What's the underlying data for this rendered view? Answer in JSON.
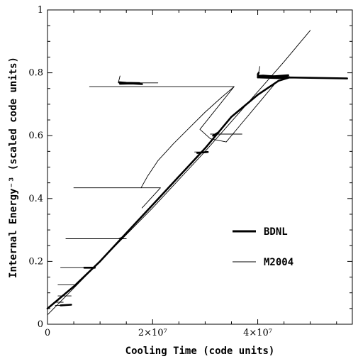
{
  "chart_data": {
    "type": "line",
    "title": "",
    "xlabel": "Cooling Time (code units)",
    "ylabel": "Internal Energy⁻³ (scaled code units)",
    "xlim": [
      0,
      58000000
    ],
    "ylim": [
      0,
      1.0
    ],
    "x_ticks": [
      {
        "value": 0,
        "label": "0"
      },
      {
        "value": 20000000,
        "label": "2×10⁷"
      },
      {
        "value": 40000000,
        "label": "4×10⁷"
      }
    ],
    "y_ticks": [
      {
        "value": 0,
        "label": "0"
      },
      {
        "value": 0.2,
        "label": "0.2"
      },
      {
        "value": 0.4,
        "label": "0.4"
      },
      {
        "value": 0.6,
        "label": "0.6"
      },
      {
        "value": 0.8,
        "label": "0.8"
      },
      {
        "value": 1.0,
        "label": "1"
      }
    ],
    "legend_position": "center-right",
    "series": [
      {
        "name": "BDNL",
        "style": "thick",
        "color": "#000000",
        "segments": [
          [
            [
              0,
              0.05
            ],
            [
              5000000,
              0.12
            ],
            [
              10000000,
              0.2
            ],
            [
              15000000,
              0.29
            ],
            [
              20000000,
              0.38
            ],
            [
              25000000,
              0.47
            ],
            [
              30000000,
              0.56
            ],
            [
              35000000,
              0.66
            ],
            [
              40000000,
              0.73
            ],
            [
              44000000,
              0.775
            ],
            [
              46000000,
              0.785
            ],
            [
              57000000,
              0.782
            ]
          ],
          [
            [
              40000000,
              0.79
            ],
            [
              41000000,
              0.791
            ],
            [
              43000000,
              0.789
            ],
            [
              45000000,
              0.787
            ],
            [
              46000000,
              0.786
            ]
          ],
          [
            [
              40200000,
              0.8
            ],
            [
              40000000,
              0.795
            ],
            [
              40400000,
              0.785
            ],
            [
              44000000,
              0.783
            ],
            [
              45000000,
              0.784
            ]
          ],
          [
            [
              40000000,
              0.785
            ],
            [
              45800000,
              0.792
            ]
          ],
          [
            [
              13800000,
              0.765
            ],
            [
              16000000,
              0.766
            ],
            [
              18000000,
              0.764
            ]
          ],
          [
            [
              13600000,
              0.77
            ],
            [
              15000000,
              0.768
            ],
            [
              17500000,
              0.767
            ]
          ],
          [
            [
              2500000,
              0.06
            ],
            [
              4500000,
              0.062
            ]
          ],
          [
            [
              7000000,
              0.18
            ],
            [
              9000000,
              0.18
            ]
          ],
          [
            [
              28500000,
              0.545
            ],
            [
              30500000,
              0.548
            ]
          ],
          [
            [
              31500000,
              0.6
            ],
            [
              32500000,
              0.61
            ]
          ]
        ]
      },
      {
        "name": "M2004",
        "style": "thin",
        "color": "#000000",
        "segments": [
          [
            [
              0,
              0.03
            ],
            [
              5000000,
              0.115
            ],
            [
              10000000,
              0.2
            ],
            [
              15000000,
              0.285
            ],
            [
              20000000,
              0.37
            ],
            [
              25000000,
              0.46
            ],
            [
              30000000,
              0.55
            ],
            [
              35000000,
              0.645
            ],
            [
              40000000,
              0.74
            ],
            [
              45000000,
              0.835
            ],
            [
              50000000,
              0.935
            ]
          ],
          [
            [
              1500000,
              0.06
            ],
            [
              4000000,
              0.06
            ]
          ],
          [
            [
              1500000,
              0.07
            ],
            [
              3000000,
              0.07
            ]
          ],
          [
            [
              2000000,
              0.09
            ],
            [
              4500000,
              0.09
            ]
          ],
          [
            [
              2000000,
              0.125
            ],
            [
              5500000,
              0.125
            ]
          ],
          [
            [
              2500000,
              0.18
            ],
            [
              9000000,
              0.18
            ]
          ],
          [
            [
              3500000,
              0.272
            ],
            [
              15000000,
              0.272
            ]
          ],
          [
            [
              5000000,
              0.434
            ],
            [
              21500000,
              0.434
            ],
            [
              18000000,
              0.37
            ]
          ],
          [
            [
              17800000,
              0.434
            ],
            [
              19000000,
              0.47
            ],
            [
              21000000,
              0.52
            ],
            [
              24000000,
              0.575
            ],
            [
              27000000,
              0.625
            ],
            [
              30000000,
              0.675
            ],
            [
              33000000,
              0.72
            ],
            [
              35500000,
              0.756
            ]
          ],
          [
            [
              8000000,
              0.756
            ],
            [
              35500000,
              0.756
            ],
            [
              29000000,
              0.62
            ],
            [
              31000000,
              0.59
            ],
            [
              34000000,
              0.58
            ],
            [
              37000000,
              0.64
            ],
            [
              40000000,
              0.7
            ],
            [
              43500000,
              0.77
            ]
          ],
          [
            [
              13500000,
              0.768
            ],
            [
              21000000,
              0.768
            ]
          ],
          [
            [
              13500000,
              0.77
            ],
            [
              13800000,
              0.79
            ]
          ],
          [
            [
              40000000,
              0.785
            ],
            [
              40400000,
              0.82
            ]
          ],
          [
            [
              31000000,
              0.605
            ],
            [
              37000000,
              0.605
            ]
          ],
          [
            [
              28000000,
              0.548
            ],
            [
              30000000,
              0.548
            ]
          ],
          [
            [
              13500000,
              0.272
            ],
            [
              14500000,
              0.28
            ]
          ]
        ]
      }
    ]
  }
}
